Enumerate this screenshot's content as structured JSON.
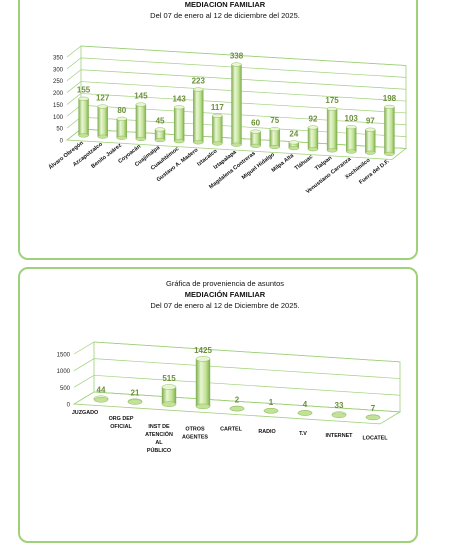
{
  "chart_data": [
    {
      "type": "bar",
      "title": "MEDIACION FAMILIAR",
      "subtitle": "Del  07 de enero  al  12 de diciembre del  2025.",
      "ylim": [
        0,
        350
      ],
      "yticks": [
        0,
        50,
        100,
        150,
        200,
        250,
        300,
        350
      ],
      "grid": true,
      "categories": [
        "Álvaro Obregón",
        "Azcapotzalco",
        "Benito Juárez",
        "Coyoacán",
        "Cuajimalpa",
        "Cuauhtémoc",
        "Gustavo A. Madero",
        "Iztacalco",
        "Iztapalapa",
        "Magdalena Contreras",
        "Miguel Hidalgo",
        "Milpa Alta",
        "Tláhuac",
        "Tlalpan",
        "Venustiano Carranza",
        "Xochimilco",
        "Fuera del D.F."
      ],
      "values": [
        155,
        127,
        80,
        145,
        45,
        143,
        223,
        117,
        338,
        60,
        75,
        24,
        92,
        175,
        103,
        97,
        198
      ]
    },
    {
      "type": "bar",
      "title": "Gráfica de proveniencia de asuntos",
      "subtitle": "MEDIACIÓN FAMILIAR",
      "subtitle2": "Del  07 de enero al  12 de Diciembre de  2025.",
      "ylim": [
        0,
        1500
      ],
      "yticks": [
        0,
        500,
        1000,
        1500
      ],
      "grid": true,
      "categories": [
        "JUZGADO",
        "ORG DEP OFICIAL",
        "INST DE ATENCIÓN AL PÚBLICO",
        "OTROS AGENTES",
        "CARTEL",
        "RADIO",
        "T.V",
        "INTERNET",
        "LOCATEL"
      ],
      "values": [
        44,
        21,
        515,
        1425,
        2,
        1,
        4,
        33,
        7
      ]
    }
  ],
  "colors": {
    "border": "#9fd07a",
    "bar_light": "#e9f6d4",
    "bar_mid": "#c2e395",
    "bar_dark": "#7fae4f",
    "label": "#6b8f3a",
    "grid": "#9fd07a"
  }
}
